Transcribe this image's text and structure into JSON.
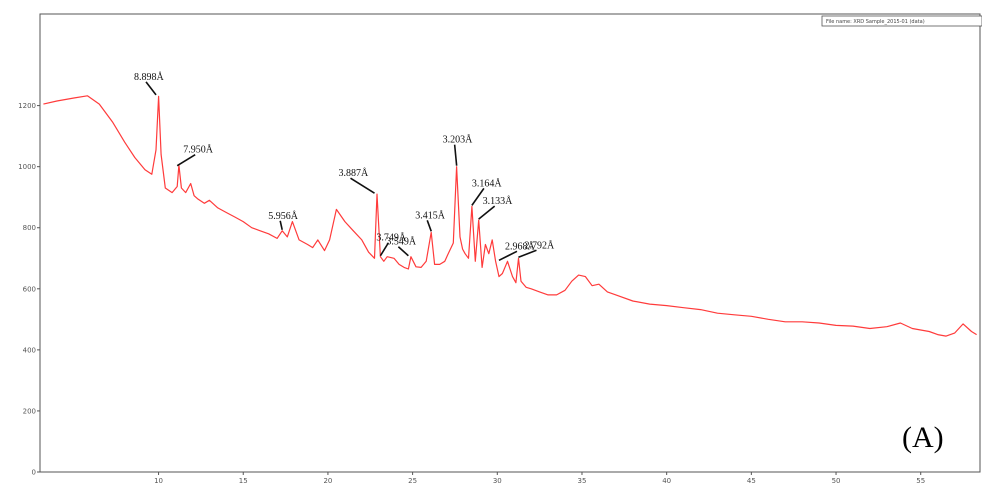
{
  "chart_data": {
    "type": "line",
    "panel_label": "(A)",
    "file_name_box": "File name: XRD Sample_2015-01 (data)",
    "xlim": [
      3,
      58.5
    ],
    "ylim": [
      0,
      1500
    ],
    "x_ticks": [
      10,
      15,
      20,
      25,
      30,
      35,
      40,
      45,
      50,
      55
    ],
    "y_ticks": [
      0,
      200,
      400,
      600,
      800,
      1000,
      1200
    ],
    "y_tick_labels": [
      "0",
      "200",
      "400",
      "600",
      "800",
      "1000",
      "1200"
    ],
    "grid": false,
    "series": [
      {
        "color": "#ff3b3b",
        "x": [
          3.2,
          4.0,
          5.0,
          5.8,
          6.5,
          7.3,
          8.0,
          8.6,
          9.2,
          9.6,
          9.85,
          10.0,
          10.15,
          10.4,
          10.8,
          11.1,
          11.2,
          11.35,
          11.6,
          11.9,
          12.1,
          12.3,
          12.7,
          13.0,
          13.5,
          14.0,
          14.5,
          15.0,
          15.5,
          16.0,
          16.5,
          17.0,
          17.3,
          17.6,
          17.9,
          18.3,
          18.8,
          19.1,
          19.4,
          19.8,
          20.1,
          20.5,
          21.0,
          21.5,
          22.0,
          22.4,
          22.75,
          22.9,
          23.1,
          23.3,
          23.5,
          23.9,
          24.2,
          24.5,
          24.75,
          24.9,
          25.2,
          25.5,
          25.8,
          26.1,
          26.3,
          26.6,
          26.9,
          27.1,
          27.4,
          27.6,
          27.8,
          27.95,
          28.1,
          28.3,
          28.5,
          28.7,
          28.9,
          29.1,
          29.3,
          29.5,
          29.7,
          29.9,
          30.1,
          30.3,
          30.6,
          30.9,
          31.1,
          31.25,
          31.4,
          31.7,
          32.0,
          32.5,
          33.0,
          33.5,
          34.0,
          34.4,
          34.8,
          35.2,
          35.6,
          36.0,
          36.5,
          37.0,
          38.0,
          39.0,
          40.0,
          41.0,
          42.0,
          43.0,
          44.0,
          45.0,
          46.0,
          47.0,
          48.0,
          49.0,
          50.0,
          51.0,
          52.0,
          53.0,
          53.8,
          54.5,
          55.0,
          55.5,
          56.0,
          56.5,
          57.0,
          57.5,
          58.0,
          58.3
        ],
        "y": [
          1205,
          1215,
          1225,
          1232,
          1205,
          1145,
          1080,
          1030,
          990,
          975,
          1055,
          1230,
          1040,
          930,
          915,
          935,
          1005,
          930,
          915,
          945,
          905,
          895,
          880,
          890,
          865,
          850,
          835,
          820,
          800,
          790,
          780,
          765,
          790,
          770,
          820,
          760,
          745,
          735,
          760,
          725,
          760,
          860,
          820,
          790,
          760,
          720,
          700,
          910,
          705,
          690,
          705,
          700,
          680,
          670,
          665,
          705,
          672,
          670,
          690,
          785,
          680,
          680,
          690,
          715,
          750,
          1000,
          770,
          730,
          715,
          700,
          870,
          690,
          825,
          670,
          745,
          715,
          760,
          690,
          640,
          650,
          690,
          640,
          620,
          700,
          625,
          605,
          600,
          590,
          580,
          580,
          595,
          625,
          645,
          640,
          610,
          615,
          590,
          580,
          560,
          550,
          545,
          538,
          532,
          520,
          515,
          510,
          500,
          492,
          492,
          488,
          480,
          478,
          470,
          476,
          488,
          470,
          465,
          460,
          450,
          445,
          455,
          485,
          460,
          450
        ]
      }
    ],
    "peak_annotations": [
      {
        "label": "8.898Å",
        "x": 9.85,
        "y": 1232
      },
      {
        "label": "7.950Å",
        "x": 11.1,
        "y": 1000
      },
      {
        "label": "5.956Å",
        "x": 17.3,
        "y": 790
      },
      {
        "label": "3.887Å",
        "x": 22.75,
        "y": 910
      },
      {
        "label": "3.749Å",
        "x": 23.1,
        "y": 705
      },
      {
        "label": "3.549Å",
        "x": 24.75,
        "y": 705
      },
      {
        "label": "3.415Å",
        "x": 26.1,
        "y": 785
      },
      {
        "label": "3.203Å",
        "x": 27.6,
        "y": 1000
      },
      {
        "label": "3.164Å",
        "x": 28.5,
        "y": 870
      },
      {
        "label": "3.133Å",
        "x": 28.9,
        "y": 825
      },
      {
        "label": "2.968Å",
        "x": 30.1,
        "y": 690
      },
      {
        "label": "2.792Å",
        "x": 31.25,
        "y": 700
      }
    ]
  }
}
